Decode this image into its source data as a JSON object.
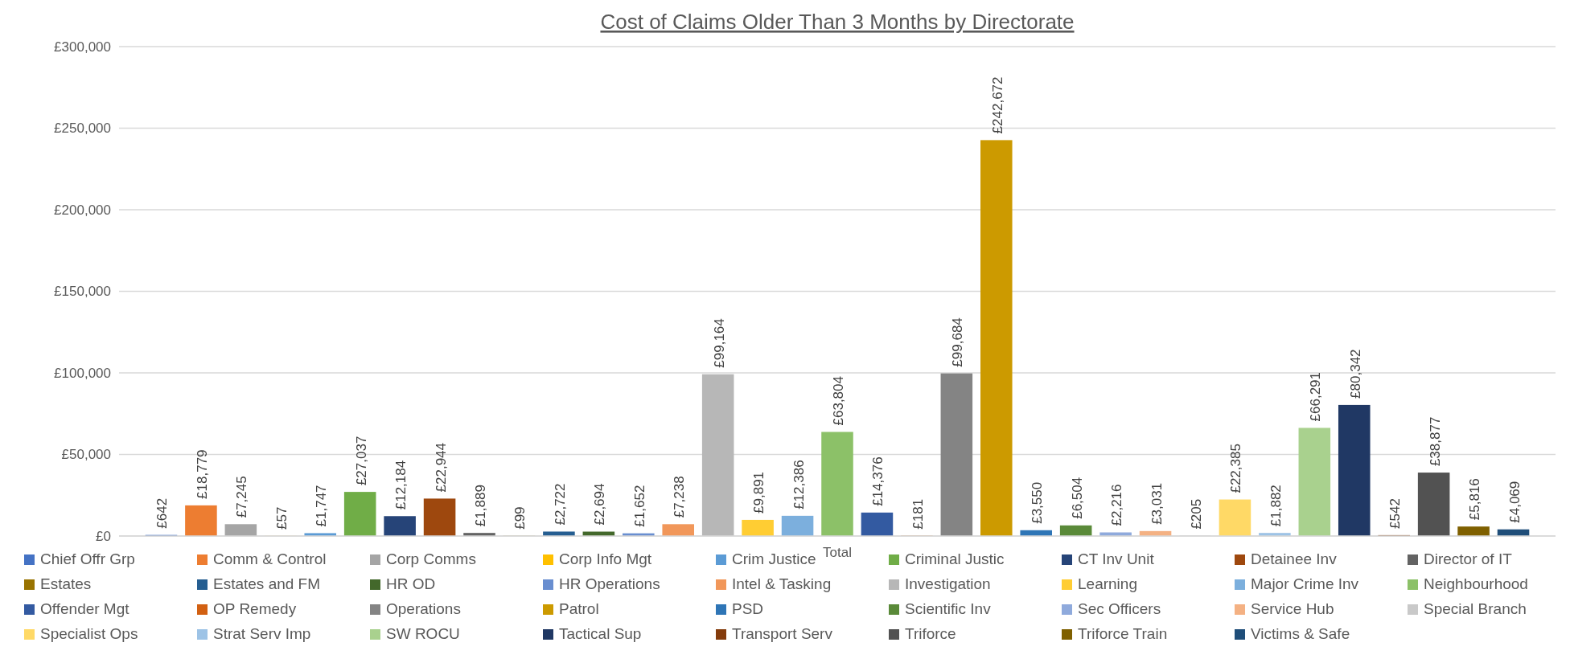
{
  "chart_data": {
    "type": "bar",
    "title": "Cost of Claims Older Than 3 Months by Directorate",
    "categories": [
      "Total"
    ],
    "ylim": [
      0,
      300000
    ],
    "yticks": [
      {
        "value": 0,
        "label": "£0"
      },
      {
        "value": 50000,
        "label": "£50,000"
      },
      {
        "value": 100000,
        "label": "£100,000"
      },
      {
        "value": 150000,
        "label": "£150,000"
      },
      {
        "value": 200000,
        "label": "£200,000"
      },
      {
        "value": 250000,
        "label": "£250,000"
      },
      {
        "value": 300000,
        "label": "£300,000"
      }
    ],
    "grid": "y",
    "legend": "bottom",
    "series": [
      {
        "name": "Chief Offr Grp",
        "color": "#4472c4",
        "values": [
          642
        ],
        "value_labels": [
          "£642"
        ]
      },
      {
        "name": "Comm & Control",
        "color": "#ed7d31",
        "values": [
          18779
        ],
        "value_labels": [
          "£18,779"
        ]
      },
      {
        "name": "Corp Comms",
        "color": "#a5a5a5",
        "values": [
          7245
        ],
        "value_labels": [
          "£7,245"
        ]
      },
      {
        "name": "Corp Info Mgt",
        "color": "#ffc000",
        "values": [
          57
        ],
        "value_labels": [
          "£57"
        ]
      },
      {
        "name": "Crim Justice",
        "color": "#5b9bd5",
        "values": [
          1747
        ],
        "value_labels": [
          "£1,747"
        ]
      },
      {
        "name": "Criminal Justic",
        "color": "#70ad47",
        "values": [
          27037
        ],
        "value_labels": [
          "£27,037"
        ]
      },
      {
        "name": "CT Inv Unit",
        "color": "#264478",
        "values": [
          12184
        ],
        "value_labels": [
          "£12,184"
        ]
      },
      {
        "name": "Detainee Inv",
        "color": "#9e480e",
        "values": [
          22944
        ],
        "value_labels": [
          "£22,944"
        ]
      },
      {
        "name": "Director of IT",
        "color": "#636363",
        "values": [
          1889
        ],
        "value_labels": [
          "£1,889"
        ]
      },
      {
        "name": "Estates",
        "color": "#997300",
        "values": [
          99
        ],
        "value_labels": [
          "£99"
        ]
      },
      {
        "name": "Estates and FM",
        "color": "#255e91",
        "values": [
          2722
        ],
        "value_labels": [
          "£2,722"
        ]
      },
      {
        "name": "HR OD",
        "color": "#43682b",
        "values": [
          2694
        ],
        "value_labels": [
          "£2,694"
        ]
      },
      {
        "name": "HR Operations",
        "color": "#698ed0",
        "values": [
          1652
        ],
        "value_labels": [
          "£1,652"
        ]
      },
      {
        "name": "Intel & Tasking",
        "color": "#f1975a",
        "values": [
          7238
        ],
        "value_labels": [
          "£7,238"
        ]
      },
      {
        "name": "Investigation",
        "color": "#b7b7b7",
        "values": [
          99164
        ],
        "value_labels": [
          "£99,164"
        ]
      },
      {
        "name": "Learning",
        "color": "#ffcd33",
        "values": [
          9891
        ],
        "value_labels": [
          "£9,891"
        ]
      },
      {
        "name": "Major Crime Inv",
        "color": "#7cafdd",
        "values": [
          12386
        ],
        "value_labels": [
          "£12,386"
        ]
      },
      {
        "name": "Neighbourhood",
        "color": "#8cc168",
        "values": [
          63804
        ],
        "value_labels": [
          "£63,804"
        ]
      },
      {
        "name": "Offender Mgt",
        "color": "#335aa1",
        "values": [
          14376
        ],
        "value_labels": [
          "£14,376"
        ]
      },
      {
        "name": "OP Remedy",
        "color": "#d26012",
        "values": [
          181
        ],
        "value_labels": [
          "£181"
        ]
      },
      {
        "name": "Operations",
        "color": "#848484",
        "values": [
          99684
        ],
        "value_labels": [
          "£99,684"
        ]
      },
      {
        "name": "Patrol",
        "color": "#cc9a00",
        "values": [
          242672
        ],
        "value_labels": [
          "£242,672"
        ]
      },
      {
        "name": "PSD",
        "color": "#2e75b6",
        "values": [
          3550
        ],
        "value_labels": [
          "£3,550"
        ]
      },
      {
        "name": "Scientific Inv",
        "color": "#5a8a39",
        "values": [
          6504
        ],
        "value_labels": [
          "£6,504"
        ]
      },
      {
        "name": "Sec Officers",
        "color": "#8faadc",
        "values": [
          2216
        ],
        "value_labels": [
          "£2,216"
        ]
      },
      {
        "name": "Service Hub",
        "color": "#f4b183",
        "values": [
          3031
        ],
        "value_labels": [
          "£3,031"
        ]
      },
      {
        "name": "Special Branch",
        "color": "#c9c9c9",
        "values": [
          205
        ],
        "value_labels": [
          "£205"
        ]
      },
      {
        "name": "Specialist Ops",
        "color": "#ffd966",
        "values": [
          22385
        ],
        "value_labels": [
          "£22,385"
        ]
      },
      {
        "name": "Strat Serv Imp",
        "color": "#9dc3e6",
        "values": [
          1882
        ],
        "value_labels": [
          "£1,882"
        ]
      },
      {
        "name": "SW ROCU",
        "color": "#a9d18e",
        "values": [
          66291
        ],
        "value_labels": [
          "£66,291"
        ]
      },
      {
        "name": "Tactical Sup",
        "color": "#203864",
        "values": [
          80342
        ],
        "value_labels": [
          "£80,342"
        ]
      },
      {
        "name": "Transport Serv",
        "color": "#843c0c",
        "values": [
          542
        ],
        "value_labels": [
          "£542"
        ]
      },
      {
        "name": "Triforce",
        "color": "#525252",
        "values": [
          38877
        ],
        "value_labels": [
          "£38,877"
        ]
      },
      {
        "name": "Triforce Train",
        "color": "#7f6000",
        "values": [
          5816
        ],
        "value_labels": [
          "£5,816"
        ]
      },
      {
        "name": "Victims & Safe",
        "color": "#1f4e79",
        "values": [
          4069
        ],
        "value_labels": [
          "£4,069"
        ]
      }
    ]
  }
}
